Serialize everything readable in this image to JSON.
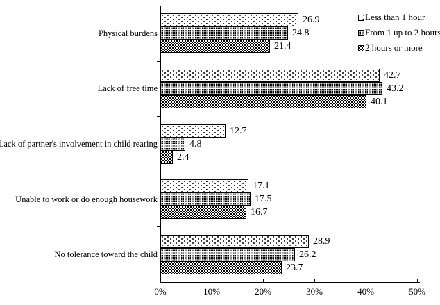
{
  "chart_data": {
    "type": "bar",
    "orientation": "horizontal",
    "title": "",
    "categories": [
      "Physical burdens",
      "Lack of free time",
      "Lack of partner's involvement in child rearing",
      "Unable to work or do enough housework",
      "No tolerance toward the child"
    ],
    "series": [
      {
        "name": "Less than 1 hour",
        "pattern": "sparse-dots",
        "values": [
          26.9,
          42.7,
          12.7,
          17.1,
          28.9
        ]
      },
      {
        "name": "From 1 up to 2 hours",
        "pattern": "dense-dots",
        "values": [
          24.8,
          43.2,
          4.8,
          17.5,
          26.2
        ]
      },
      {
        "name": "2 hours or more",
        "pattern": "checker",
        "values": [
          21.4,
          40.1,
          2.4,
          16.7,
          23.7
        ]
      }
    ],
    "x_tick_labels": [
      "0%",
      "10%",
      "20%",
      "30%",
      "40%",
      "50%"
    ],
    "xlim": [
      0,
      50
    ],
    "value_labels_shown": true,
    "value_label_decimals": 1,
    "grid": false,
    "legend_position": "top-right",
    "colors": {
      "text": "#000000",
      "bar_border": "#000000",
      "background": "#ffffff"
    }
  }
}
